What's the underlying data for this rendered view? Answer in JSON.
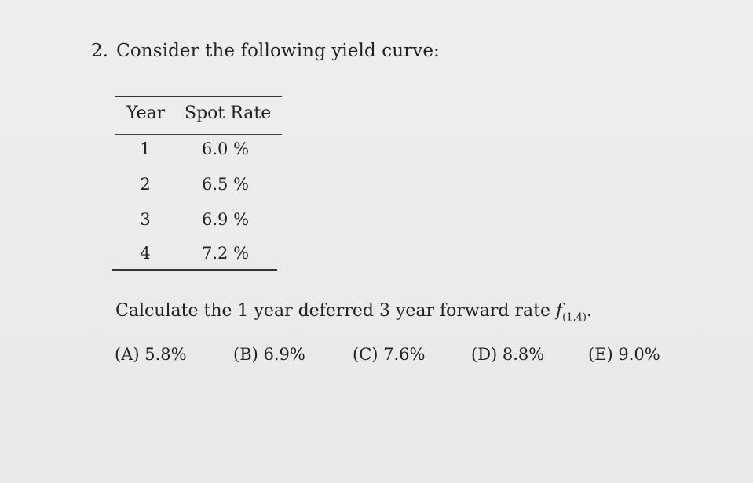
{
  "question": {
    "number": "2.",
    "text": "Consider the following yield curve:"
  },
  "table": {
    "headers": {
      "year": "Year",
      "rate": "Spot Rate"
    },
    "rows": [
      {
        "year": "1",
        "rate": "6.0 %"
      },
      {
        "year": "2",
        "rate": "6.5 %"
      },
      {
        "year": "3",
        "rate": "6.9 %"
      },
      {
        "year": "4",
        "rate": "7.2 %"
      }
    ]
  },
  "prompt": {
    "text": "Calculate the 1 year deferred 3 year forward rate ",
    "symbol": "f",
    "subscript": "(1,4)",
    "end": "."
  },
  "choices": [
    {
      "label": "(A) 5.8%"
    },
    {
      "label": "(B) 6.9%"
    },
    {
      "label": "(C) 7.6%"
    },
    {
      "label": "(D) 8.8%"
    },
    {
      "label": "(E) 9.0%"
    }
  ]
}
